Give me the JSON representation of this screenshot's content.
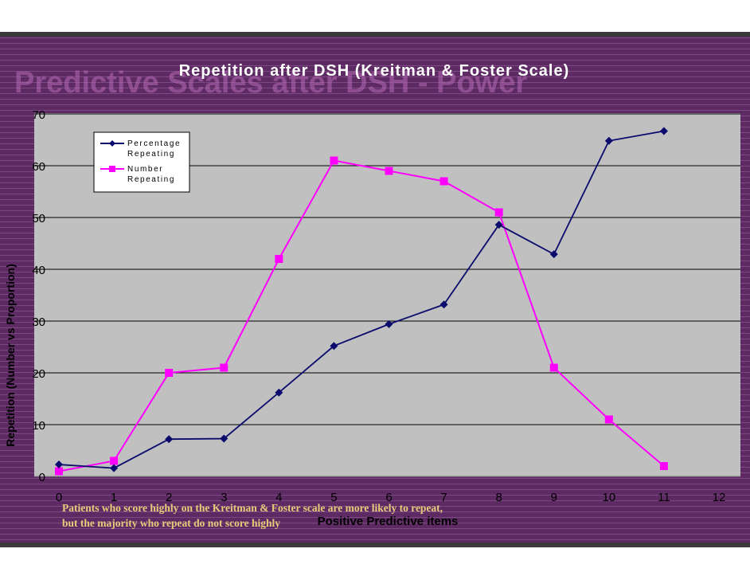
{
  "slide": {
    "background_title": "Predictive Scales after DSH - Power",
    "caption_lines": [
      "Patients who score highly on the Kreitman & Foster scale are more likely to repeat,",
      "but the majority who repeat do not score highly"
    ]
  },
  "colors": {
    "slide_bg": "#5e2a63",
    "plot_bg": "#c0c0c0",
    "percentage_series": "#0b0b6e",
    "number_series": "#ff00ff",
    "caption": "#e8cc7a"
  },
  "chart_data": {
    "type": "line",
    "title": "Repetition after DSH (Kreitman & Foster Scale)",
    "xlabel": "Positive Predictive items",
    "ylabel": "Repetition (Number vs Proportion)",
    "xlim": [
      0,
      12
    ],
    "ylim": [
      0,
      70
    ],
    "xticks": [
      "0",
      "1",
      "2",
      "3",
      "4",
      "5",
      "6",
      "7",
      "8",
      "9",
      "10",
      "11",
      "12"
    ],
    "yticks": [
      "0",
      "10",
      "20",
      "30",
      "40",
      "50",
      "60",
      "70"
    ],
    "grid": true,
    "legend_position": "top-left",
    "x": [
      0,
      1,
      2,
      3,
      4,
      5,
      6,
      7,
      8,
      9,
      10,
      11
    ],
    "series": [
      {
        "name": "Percentage Repeating",
        "legend_lines": [
          "Percentage",
          "Repeating"
        ],
        "marker": "diamond",
        "values": [
          2.3,
          1.6,
          7.2,
          7.3,
          16.2,
          25.2,
          29.4,
          33.2,
          48.6,
          42.9,
          64.8,
          66.7
        ]
      },
      {
        "name": "Number Repeating",
        "legend_lines": [
          "Number",
          "Repeating"
        ],
        "marker": "square",
        "values": [
          1,
          3,
          20,
          21,
          42,
          61,
          59,
          57,
          51,
          21,
          11,
          2
        ]
      }
    ]
  }
}
